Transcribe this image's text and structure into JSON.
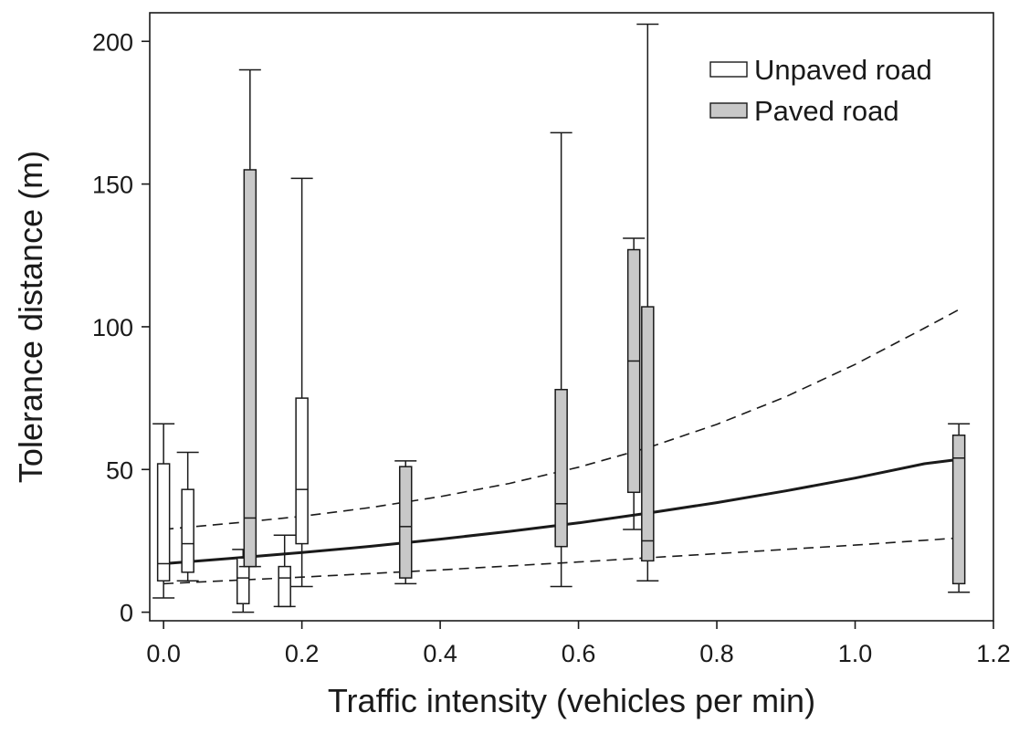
{
  "chart_data": {
    "type": "box",
    "title": "",
    "xlabel": "Traffic intensity (vehicles per min)",
    "ylabel": "Tolerance distance (m)",
    "xlim": [
      -0.02,
      1.2
    ],
    "ylim": [
      -3,
      210
    ],
    "xticks": [
      0.0,
      0.2,
      0.4,
      0.6,
      0.8,
      1.0,
      1.2
    ],
    "xtick_labels": [
      "0.0",
      "0.2",
      "0.4",
      "0.6",
      "0.8",
      "1.0",
      "1.2"
    ],
    "yticks": [
      0,
      50,
      100,
      150,
      200
    ],
    "ytick_labels": [
      "0",
      "50",
      "100",
      "150",
      "200"
    ],
    "grid": false,
    "legend": {
      "position": "top-right",
      "entries": [
        {
          "name": "Unpaved road",
          "color": "#ffffff"
        },
        {
          "name": "Paved road",
          "color": "#c8c8c8"
        }
      ]
    },
    "series": [
      {
        "name": "Unpaved road",
        "color": "#ffffff",
        "boxes": [
          {
            "x": 0.0,
            "min": 5,
            "q1": 11,
            "median": 17,
            "q3": 52,
            "max": 66
          },
          {
            "x": 0.035,
            "min": 11,
            "q1": 14,
            "median": 24,
            "q3": 43,
            "max": 56
          },
          {
            "x": 0.115,
            "min": 0,
            "q1": 3,
            "median": 12,
            "q3": 19,
            "max": 22
          },
          {
            "x": 0.175,
            "min": 2,
            "q1": 2,
            "median": 12,
            "q3": 16,
            "max": 27
          },
          {
            "x": 0.2,
            "min": 9,
            "q1": 24,
            "median": 43,
            "q3": 75,
            "max": 152
          }
        ]
      },
      {
        "name": "Paved road",
        "color": "#c8c8c8",
        "boxes": [
          {
            "x": 0.125,
            "min": 16,
            "q1": 16,
            "median": 33,
            "q3": 155,
            "max": 190
          },
          {
            "x": 0.35,
            "min": 10,
            "q1": 12,
            "median": 30,
            "q3": 51,
            "max": 53
          },
          {
            "x": 0.575,
            "min": 9,
            "q1": 23,
            "median": 38,
            "q3": 78,
            "max": 168
          },
          {
            "x": 0.68,
            "min": 29,
            "q1": 42,
            "median": 88,
            "q3": 127,
            "max": 131
          },
          {
            "x": 0.7,
            "min": 11,
            "q1": 18,
            "median": 25,
            "q3": 107,
            "max": 206
          },
          {
            "x": 1.15,
            "min": 7,
            "q1": 10,
            "median": 54,
            "q3": 62,
            "max": 66
          }
        ]
      }
    ],
    "lines": [
      {
        "kind": "fit",
        "style": "solid",
        "x": [
          0.0,
          0.1,
          0.2,
          0.3,
          0.4,
          0.5,
          0.6,
          0.7,
          0.8,
          0.9,
          1.0,
          1.1,
          1.15
        ],
        "y": [
          17,
          18.9,
          20.9,
          23.1,
          25.6,
          28.3,
          31.3,
          34.7,
          38.4,
          42.5,
          47.0,
          52.0,
          53.5
        ]
      },
      {
        "kind": "upper-ci",
        "style": "dashed",
        "x": [
          0.0,
          0.1,
          0.2,
          0.3,
          0.4,
          0.5,
          0.6,
          0.7,
          0.8,
          0.9,
          1.0,
          1.1,
          1.15
        ],
        "y": [
          29,
          31.2,
          33.6,
          36.7,
          40.5,
          45.1,
          50.8,
          57.6,
          65.8,
          75.5,
          86.8,
          99.5,
          106
        ]
      },
      {
        "kind": "lower-ci",
        "style": "dashed",
        "x": [
          0.0,
          0.2,
          0.4,
          0.6,
          0.8,
          1.0,
          1.15
        ],
        "y": [
          10,
          12.3,
          14.8,
          17.6,
          20.5,
          23.5,
          26
        ]
      }
    ]
  }
}
